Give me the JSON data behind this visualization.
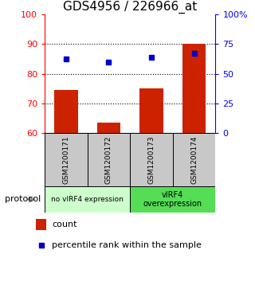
{
  "title": "GDS4956 / 226966_at",
  "samples": [
    "GSM1200171",
    "GSM1200172",
    "GSM1200173",
    "GSM1200174"
  ],
  "bar_values": [
    74.5,
    63.5,
    75.0,
    90.0
  ],
  "bar_color": "#cc2200",
  "blue_dot_values": [
    85.0,
    84.0,
    85.5,
    87.0
  ],
  "blue_dot_color": "#0000cc",
  "ylim_left": [
    60,
    100
  ],
  "yticks_left": [
    60,
    70,
    80,
    90,
    100
  ],
  "ytick_labels_right": [
    "0",
    "25",
    "50",
    "75",
    "100%"
  ],
  "yticks_right_pos": [
    60,
    70,
    80,
    90,
    100
  ],
  "bar_bottom": 60,
  "group1_label": "no vIRF4 expression",
  "group2_label": "vIRF4\noverexpression",
  "group1_color": "#ccffcc",
  "group2_color": "#55dd55",
  "group_bg_color": "#c8c8c8",
  "protocol_label": "protocol",
  "legend_count_label": "count",
  "legend_pct_label": "percentile rank within the sample",
  "title_fontsize": 11,
  "tick_fontsize": 8,
  "background_color": "#ffffff"
}
